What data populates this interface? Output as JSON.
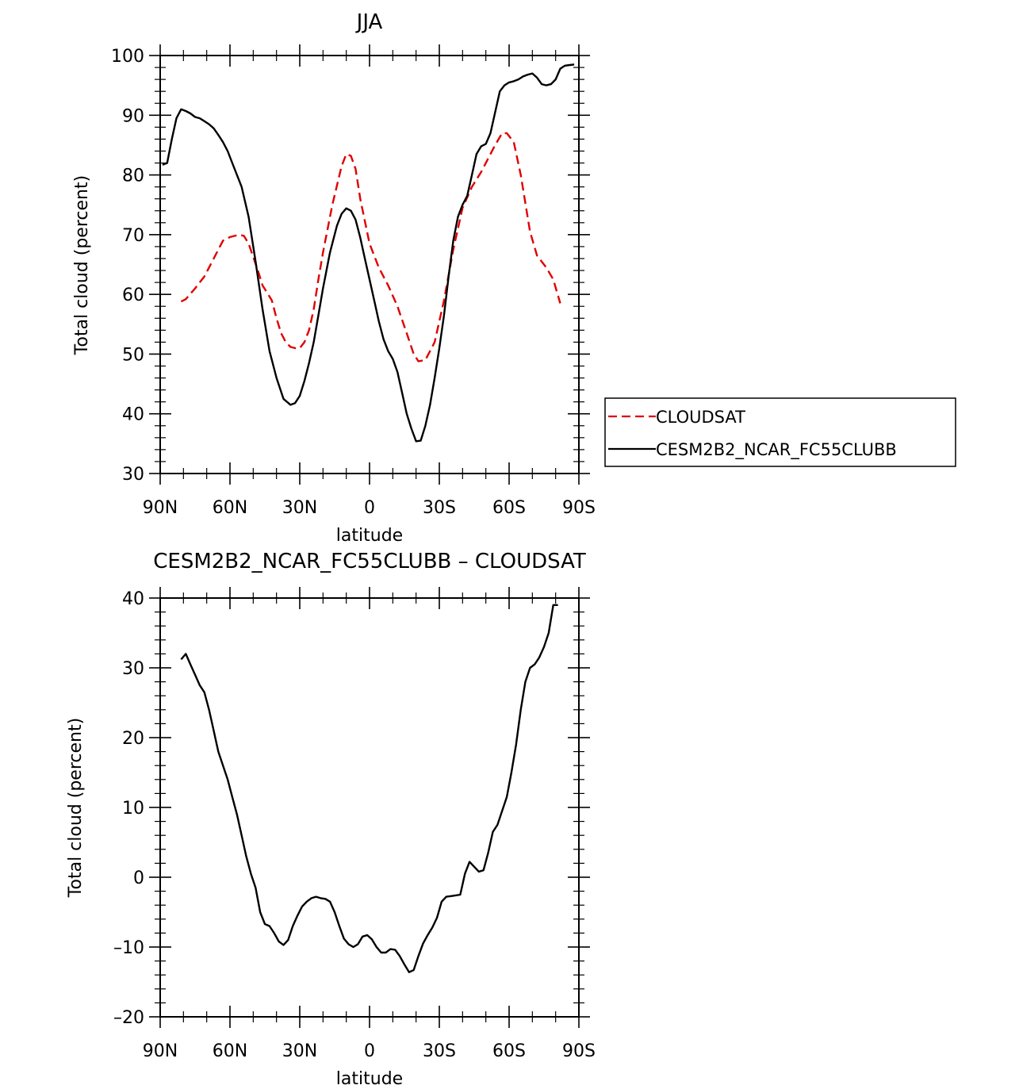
{
  "chart_data": [
    {
      "type": "line",
      "title": "JJA",
      "xlabel": "latitude",
      "ylabel": "Total cloud (percent)",
      "xlim": [
        90,
        -90
      ],
      "ylim": [
        30,
        100
      ],
      "x_ticks": [
        90,
        60,
        30,
        0,
        -30,
        -60,
        -90
      ],
      "x_tick_labels": [
        "90N",
        "60N",
        "30N",
        "0",
        "30S",
        "60S",
        "90S"
      ],
      "y_ticks": [
        30,
        40,
        50,
        60,
        70,
        80,
        90,
        100
      ],
      "y_tick_labels": [
        "30",
        "40",
        "50",
        "60",
        "70",
        "80",
        "90",
        "100"
      ],
      "legend_position": "right",
      "series": [
        {
          "name": "CLOUDSAT",
          "color": "#e00000",
          "dash": "dashed",
          "x": [
            81,
            79,
            75,
            71,
            67,
            63,
            60,
            56,
            54,
            52,
            48,
            46,
            42,
            40,
            38,
            36,
            34,
            32,
            30,
            28,
            26,
            24,
            22,
            20,
            16,
            12,
            10,
            8,
            6,
            4,
            0,
            -4,
            -8,
            -12,
            -16,
            -19,
            -21,
            -24,
            -28,
            -32,
            -36,
            -40,
            -44,
            -48,
            -52,
            -54,
            -57,
            -59,
            -62,
            -65,
            -69,
            -72,
            -76,
            -79,
            -82
          ],
          "y": [
            58.8,
            59.2,
            61.0,
            63.0,
            66.0,
            69.0,
            69.6,
            70.0,
            69.8,
            68.5,
            64.0,
            61.5,
            59.0,
            56.0,
            53.5,
            52.0,
            51.2,
            51.0,
            51.0,
            52.0,
            54.0,
            57.5,
            62.5,
            67.0,
            75.0,
            81.5,
            83.5,
            83.2,
            81.0,
            76.0,
            68.5,
            64.5,
            61.5,
            58.0,
            53.5,
            50.0,
            48.8,
            49.0,
            52.0,
            59.0,
            67.5,
            74.5,
            78.0,
            80.5,
            83.5,
            85.0,
            87.0,
            87.0,
            85.5,
            80.0,
            70.5,
            66.5,
            64.5,
            62.5,
            58.5
          ]
        },
        {
          "name": "CESM2B2_NCAR_FC55CLUBB",
          "color": "#000000",
          "dash": "solid",
          "x": [
            89,
            87,
            85,
            83,
            81,
            79,
            77,
            75,
            73,
            71,
            69,
            67,
            65,
            63,
            61,
            59,
            57,
            55,
            52,
            49,
            46,
            43,
            40,
            37,
            34,
            32,
            30,
            28,
            26,
            24,
            22,
            20,
            17,
            14,
            12,
            10,
            8,
            6,
            4,
            2,
            0,
            -2,
            -4,
            -6,
            -8,
            -10,
            -12,
            -14,
            -16,
            -18,
            -20,
            -22,
            -24,
            -26,
            -28,
            -30,
            -32,
            -34,
            -36,
            -38,
            -40,
            -42,
            -44,
            -46,
            -48,
            -50,
            -52,
            -54,
            -56,
            -58,
            -60,
            -62,
            -64,
            -66,
            -68,
            -70,
            -72,
            -74,
            -76,
            -78,
            -80,
            -82,
            -84,
            -86,
            -88
          ],
          "y": [
            81.7,
            82.0,
            86.0,
            89.5,
            91.0,
            90.7,
            90.3,
            89.7,
            89.5,
            89.0,
            88.5,
            87.8,
            86.7,
            85.5,
            84.0,
            82.0,
            80.0,
            78.0,
            73.0,
            65.5,
            57.5,
            50.5,
            46.0,
            42.5,
            41.5,
            41.8,
            43.0,
            45.5,
            48.5,
            52.0,
            56.5,
            61.0,
            67.0,
            71.5,
            73.5,
            74.4,
            74.0,
            72.5,
            69.5,
            66.0,
            62.5,
            59.0,
            55.5,
            52.5,
            50.5,
            49.2,
            47.0,
            43.5,
            40.0,
            37.5,
            35.4,
            35.5,
            38.0,
            41.5,
            46.0,
            51.0,
            56.5,
            63.0,
            69.0,
            73.0,
            75.0,
            76.5,
            80.0,
            83.5,
            84.8,
            85.2,
            87.0,
            90.5,
            94.0,
            95.0,
            95.5,
            95.7,
            96.0,
            96.5,
            96.8,
            97.0,
            96.3,
            95.2,
            95.0,
            95.2,
            96.0,
            97.8,
            98.3,
            98.4,
            98.5
          ]
        }
      ]
    },
    {
      "type": "line",
      "title": "CESM2B2_NCAR_FC55CLUBB – CLOUDSAT",
      "xlabel": "latitude",
      "ylabel": "Total cloud (percent)",
      "xlim": [
        90,
        -90
      ],
      "ylim": [
        -20,
        40
      ],
      "x_ticks": [
        90,
        60,
        30,
        0,
        -30,
        -60,
        -90
      ],
      "x_tick_labels": [
        "90N",
        "60N",
        "30N",
        "0",
        "30S",
        "60S",
        "90S"
      ],
      "y_ticks": [
        -20,
        -10,
        0,
        10,
        20,
        30,
        40
      ],
      "y_tick_labels": [
        "–20",
        "–10",
        "0",
        "10",
        "20",
        "30",
        "40"
      ],
      "series": [
        {
          "color": "#000000",
          "dash": "solid",
          "x": [
            81,
            79,
            77,
            75,
            73,
            71,
            69,
            67,
            65,
            63,
            61,
            59,
            57,
            55,
            53,
            51,
            49,
            47,
            45,
            43,
            41,
            39,
            37,
            35,
            33,
            31,
            29,
            27,
            25,
            23,
            21,
            19,
            17,
            15,
            13,
            11,
            9,
            7,
            5,
            3,
            1,
            -1,
            -3,
            -5,
            -7,
            -9,
            -11,
            -13,
            -15,
            -17,
            -19,
            -21,
            -23,
            -25,
            -27,
            -29,
            -31,
            -33,
            -35,
            -37,
            -39,
            -41,
            -43,
            -45,
            -47,
            -49,
            -51,
            -53,
            -55,
            -57,
            -59,
            -61,
            -63,
            -65,
            -67,
            -69,
            -71,
            -73,
            -75,
            -77,
            -79,
            -81
          ],
          "y": [
            31.2,
            32.0,
            30.5,
            29.0,
            27.5,
            26.5,
            24.0,
            21.0,
            18.0,
            16.0,
            14.0,
            11.5,
            9.0,
            6.0,
            3.0,
            0.5,
            -1.5,
            -5.0,
            -6.7,
            -7.0,
            -8.0,
            -9.2,
            -9.7,
            -9.0,
            -7.0,
            -5.5,
            -4.2,
            -3.5,
            -3.0,
            -2.8,
            -3.0,
            -3.1,
            -3.5,
            -5.0,
            -7.0,
            -8.8,
            -9.6,
            -10.0,
            -9.6,
            -8.5,
            -8.3,
            -8.9,
            -10.0,
            -10.8,
            -10.8,
            -10.3,
            -10.4,
            -11.3,
            -12.5,
            -13.6,
            -13.3,
            -11.3,
            -9.5,
            -8.3,
            -7.2,
            -5.8,
            -3.5,
            -2.8,
            -2.7,
            -2.6,
            -2.5,
            0.5,
            2.2,
            1.5,
            0.8,
            1.0,
            3.5,
            6.5,
            7.5,
            9.5,
            11.5,
            15.0,
            19.0,
            24.0,
            28.0,
            30.0,
            30.5,
            31.5,
            33.0,
            35.0,
            39.0,
            39.0
          ]
        }
      ]
    }
  ]
}
